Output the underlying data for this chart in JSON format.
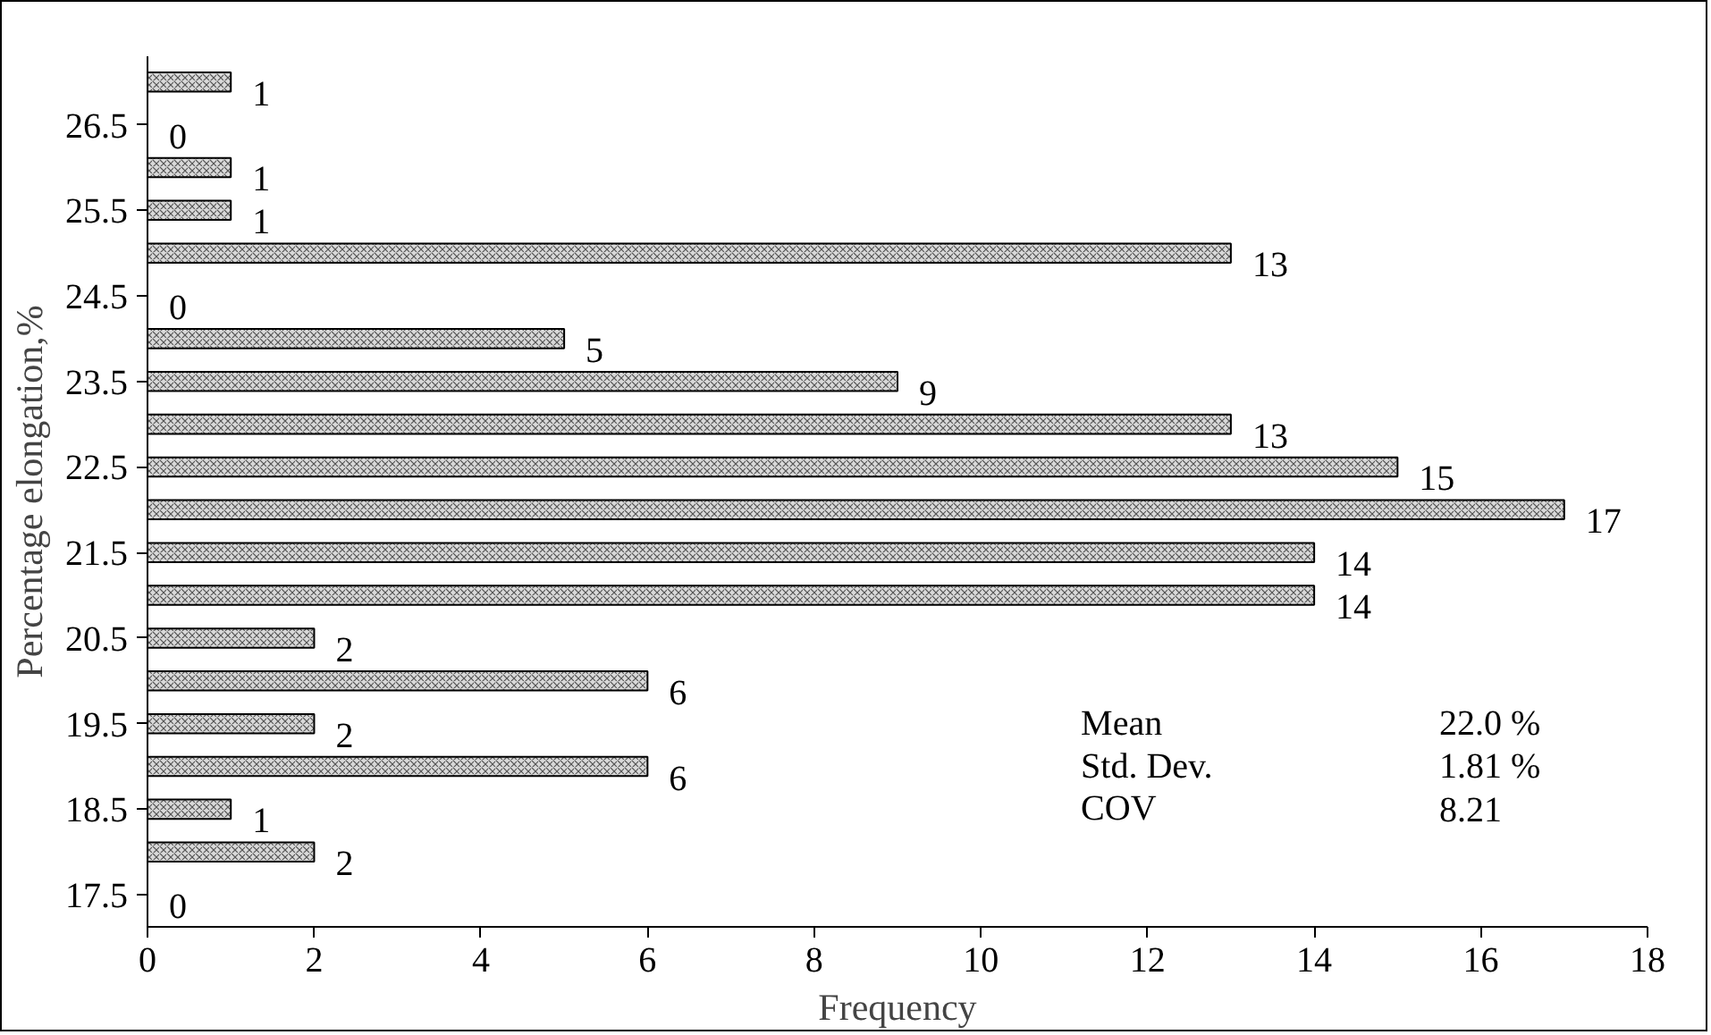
{
  "chart_data": {
    "type": "bar",
    "orientation": "horizontal",
    "xlabel": "Frequency",
    "ylabel": "Percentage elongation,%",
    "categories": [
      null,
      "26.5",
      null,
      "25.5",
      null,
      "24.5",
      null,
      "23.5",
      null,
      "22.5",
      null,
      "21.5",
      null,
      "20.5",
      null,
      "19.5",
      null,
      "18.5",
      null,
      "17.5"
    ],
    "values": [
      1,
      0,
      1,
      1,
      13,
      0,
      5,
      9,
      13,
      15,
      17,
      14,
      14,
      2,
      6,
      2,
      6,
      1,
      2,
      0
    ],
    "color": "#d9d9d9",
    "xlim": [
      0,
      18
    ],
    "xticks": [
      0,
      2,
      4,
      6,
      8,
      10,
      12,
      14,
      16,
      18
    ],
    "data_labels": true,
    "grid": false,
    "legend": false,
    "annotations": [
      "Mean",
      "22.0 %",
      "Std. Dev.",
      "1.81 %",
      "COV",
      "8.21"
    ]
  }
}
